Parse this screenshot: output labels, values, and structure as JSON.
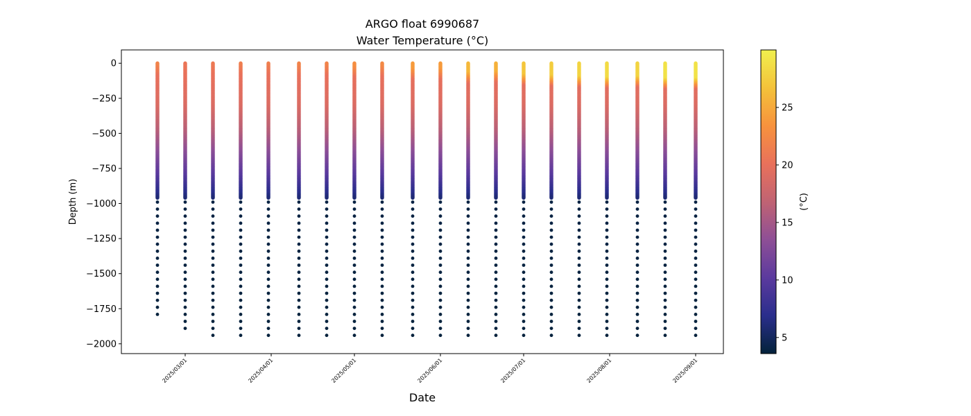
{
  "chart_data": {
    "type": "scatter",
    "title": "ARGO float 6990687",
    "subtitle": "Water Temperature (°C)",
    "xlabel": "Date",
    "ylabel": "Depth (m)",
    "colorbar_label": "(°C)",
    "xlim": [
      "2025-02-06",
      "2025-09-11"
    ],
    "ylim": [
      -2070,
      95
    ],
    "yticks": [
      0,
      -250,
      -500,
      -750,
      -1000,
      -1250,
      -1500,
      -1750,
      -2000
    ],
    "ytick_labels": [
      "0",
      "−250",
      "−500",
      "−750",
      "−1000",
      "−1250",
      "−1500",
      "−1750",
      "−2000"
    ],
    "xticks": [
      "2025-03-01",
      "2025-04-01",
      "2025-05-01",
      "2025-06-01",
      "2025-07-01",
      "2025-08-01",
      "2025-09-01"
    ],
    "xtick_labels": [
      "2025/03/01",
      "2025/04/01",
      "2025/05/01",
      "2025/06/01",
      "2025/07/01",
      "2025/08/01",
      "2025/09/01"
    ],
    "colorbar_range": [
      3.6,
      30
    ],
    "colorbar_ticks": [
      5,
      10,
      15,
      20,
      25
    ],
    "colormap": [
      "#03223a",
      "#2a2e8c",
      "#5b3a9e",
      "#8e4f96",
      "#c06373",
      "#e9715b",
      "#f7923d",
      "#f4c23a",
      "#f0f04e"
    ],
    "profiles": [
      {
        "date": "2025-02-19",
        "max_depth": 1825,
        "surface_temp": 22.0
      },
      {
        "date": "2025-03-01",
        "max_depth": 1925,
        "surface_temp": 20.5
      },
      {
        "date": "2025-03-11",
        "max_depth": 1975,
        "surface_temp": 21.0
      },
      {
        "date": "2025-03-21",
        "max_depth": 1975,
        "surface_temp": 21.5
      },
      {
        "date": "2025-03-31",
        "max_depth": 1975,
        "surface_temp": 21.5
      },
      {
        "date": "2025-04-11",
        "max_depth": 1975,
        "surface_temp": 22.0
      },
      {
        "date": "2025-04-21",
        "max_depth": 1975,
        "surface_temp": 22.0
      },
      {
        "date": "2025-05-01",
        "max_depth": 1970,
        "surface_temp": 23.0
      },
      {
        "date": "2025-05-11",
        "max_depth": 1975,
        "surface_temp": 22.5
      },
      {
        "date": "2025-05-22",
        "max_depth": 1970,
        "surface_temp": 24.0
      },
      {
        "date": "2025-06-01",
        "max_depth": 1975,
        "surface_temp": 24.0
      },
      {
        "date": "2025-06-11",
        "max_depth": 1975,
        "surface_temp": 26.0
      },
      {
        "date": "2025-06-21",
        "max_depth": 1975,
        "surface_temp": 25.5
      },
      {
        "date": "2025-07-01",
        "max_depth": 1975,
        "surface_temp": 27.0
      },
      {
        "date": "2025-07-11",
        "max_depth": 1975,
        "surface_temp": 27.5
      },
      {
        "date": "2025-07-21",
        "max_depth": 1975,
        "surface_temp": 28.0
      },
      {
        "date": "2025-07-31",
        "max_depth": 1975,
        "surface_temp": 28.5
      },
      {
        "date": "2025-08-11",
        "max_depth": 1975,
        "surface_temp": 28.0
      },
      {
        "date": "2025-08-21",
        "max_depth": 1975,
        "surface_temp": 29.0
      },
      {
        "date": "2025-09-01",
        "max_depth": 1975,
        "surface_temp": 29.0
      }
    ]
  }
}
